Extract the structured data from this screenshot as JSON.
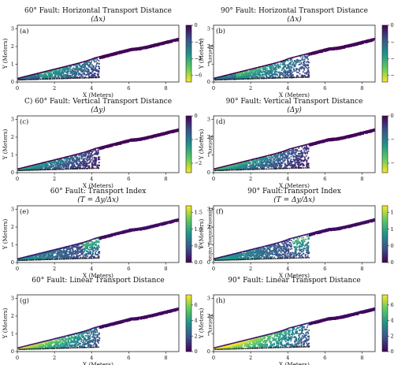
{
  "chart_data": [
    {
      "type": "scatter",
      "panel_label": "(a)",
      "title_line1": "60° Fault: Horizontal Transport Distance",
      "title_line2": "(Δx)",
      "xlabel": "X (Meters)",
      "ylabel": "Y (Meters)",
      "xticks": [
        "0",
        "2",
        "4",
        "6",
        "8"
      ],
      "yticks": [
        "0",
        "1",
        "2",
        "3"
      ],
      "xlim": [
        0,
        8.7
      ],
      "ylim": [
        0,
        3.2
      ],
      "fault": "60°",
      "quantity": "dx",
      "colorbar": {
        "label": "Meters",
        "min": -6.8,
        "max": 0,
        "ticks": [
          "0",
          "−2",
          "−4",
          "−6"
        ],
        "colormap": "viridis_r"
      }
    },
    {
      "type": "scatter",
      "panel_label": "(b)",
      "title_line1": "90° Fault: Horizontal Transport Distance",
      "title_line2": "(Δx)",
      "xlabel": "X (Meters)",
      "ylabel": "Y (Meters)",
      "xticks": [
        "0",
        "2",
        "4",
        "6",
        "8"
      ],
      "yticks": [
        "0",
        "1",
        "2",
        "3"
      ],
      "xlim": [
        0,
        8.7
      ],
      "ylim": [
        0,
        3.2
      ],
      "fault": "90°",
      "quantity": "dx",
      "colorbar": {
        "label": "Meters",
        "min": -6.8,
        "max": 0,
        "ticks": [
          "0",
          "−2",
          "−4",
          "−6"
        ],
        "colormap": "viridis_r"
      }
    },
    {
      "type": "scatter",
      "panel_label": "(c)",
      "title_line1": "C) 60° Fault: Vertical Transport Distance",
      "title_line2": "(Δy)",
      "xlabel": "X (Meters)",
      "ylabel": "Y (Meters)",
      "xticks": [
        "0",
        "2",
        "4",
        "6",
        "8"
      ],
      "yticks": [
        "0",
        "1",
        "2",
        "3"
      ],
      "xlim": [
        0,
        8.7
      ],
      "ylim": [
        0,
        3.2
      ],
      "fault": "60°",
      "quantity": "dy",
      "colorbar": {
        "label": "Meters",
        "min": -2.4,
        "max": 0,
        "ticks": [
          "0",
          "−1",
          "−2"
        ],
        "colormap": "viridis_r"
      }
    },
    {
      "type": "scatter",
      "panel_label": "(d)",
      "title_line1": "90° Fault: Vertical Transport Distance",
      "title_line2": "(Δy)",
      "xlabel": "X (Meters)",
      "ylabel": "Y (Meters)",
      "xticks": [
        "0",
        "2",
        "4",
        "6",
        "8"
      ],
      "yticks": [
        "0",
        "1",
        "2",
        "3"
      ],
      "xlim": [
        0,
        8.7
      ],
      "ylim": [
        0,
        3.2
      ],
      "fault": "90°",
      "quantity": "dy",
      "colorbar": {
        "label": "Meters",
        "min": -2.4,
        "max": 0,
        "ticks": [
          "0",
          "−1",
          "−2"
        ],
        "colormap": "viridis_r"
      }
    },
    {
      "type": "scatter",
      "panel_label": "(e)",
      "title_line1": "60° Fault: Transport Index",
      "title_line2": "(T = Δy/Δx)",
      "xlabel": "X (Meters)",
      "ylabel": "Y (Meters)",
      "xticks": [
        "0",
        "2",
        "4",
        "6",
        "8"
      ],
      "yticks": [
        "0",
        "1",
        "2",
        "3"
      ],
      "xlim": [
        0,
        8.7
      ],
      "ylim": [
        0,
        3.2
      ],
      "fault": "60°",
      "quantity": "ti",
      "colorbar": {
        "label": "Dimensionless value",
        "min": 0,
        "max": 1.7,
        "ticks": [
          "0.0",
          "0.5",
          "1.0",
          "1.5"
        ],
        "colormap": "viridis"
      }
    },
    {
      "type": "scatter",
      "panel_label": "(f)",
      "title_line1": "90° Fault:Transport Index",
      "title_line2": "(T = Δy/Δx)",
      "xlabel": "X (Meters)",
      "ylabel": "Y (Meters)",
      "xticks": [
        "0",
        "2",
        "4",
        "6",
        "8"
      ],
      "yticks": [
        "0",
        "1",
        "2",
        "3"
      ],
      "xlim": [
        0,
        8.7
      ],
      "ylim": [
        0,
        3.2
      ],
      "fault": "90°",
      "quantity": "ti",
      "colorbar": {
        "label": "Dimensionless value",
        "min": 0,
        "max": 1.7,
        "ticks": [
          "0.0",
          "0.5",
          "1.0",
          "1.5"
        ],
        "colormap": "viridis"
      }
    },
    {
      "type": "scatter",
      "panel_label": "(g)",
      "title_line1": "60° Fault: Linear Transport Distance",
      "title_line2": "",
      "xlabel": "X (Meters)",
      "ylabel": "Y (Meters)",
      "xticks": [
        "0",
        "2",
        "4",
        "6",
        "8"
      ],
      "yticks": [
        "0",
        "1",
        "2",
        "3"
      ],
      "xlim": [
        0,
        8.7
      ],
      "ylim": [
        0,
        3.2
      ],
      "fault": "60°",
      "quantity": "lt",
      "colorbar": {
        "label": "Meters",
        "min": 0,
        "max": 7.3,
        "ticks": [
          "0",
          "2",
          "4",
          "6"
        ],
        "colormap": "viridis"
      }
    },
    {
      "type": "scatter",
      "panel_label": "(h)",
      "title_line1": "90° Fault: Linear Transport Distance",
      "title_line2": "",
      "xlabel": "X (Meters)",
      "ylabel": "Y (Meters)",
      "xticks": [
        "0",
        "2",
        "4",
        "6",
        "8"
      ],
      "yticks": [
        "0",
        "1",
        "2",
        "3"
      ],
      "xlim": [
        0,
        8.7
      ],
      "ylim": [
        0,
        3.2
      ],
      "fault": "90°",
      "quantity": "lt",
      "colorbar": {
        "label": "Meters",
        "min": 0,
        "max": 7.3,
        "ticks": [
          "0",
          "2",
          "4",
          "6"
        ],
        "colormap": "viridis"
      }
    }
  ]
}
